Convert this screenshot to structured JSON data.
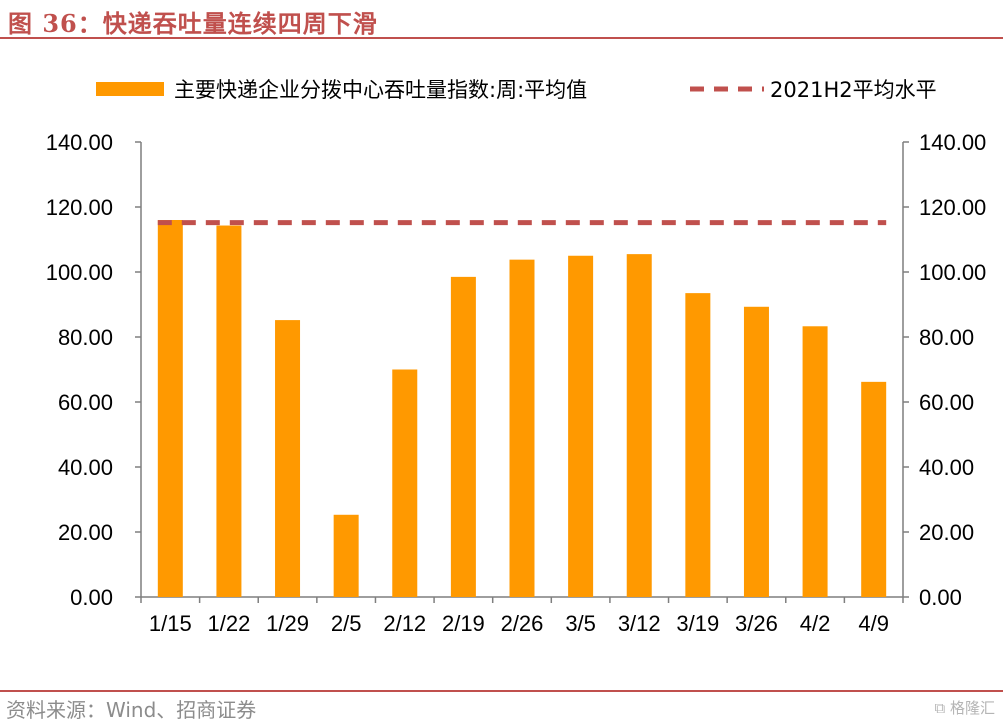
{
  "header": {
    "title": "图 36：快递吞吐量连续四周下滑"
  },
  "footer": {
    "source": "资料来源：Wind、招商证券",
    "watermark": "格隆汇"
  },
  "colors": {
    "accent": "#c0504d",
    "bar": "#ff9900",
    "reference_line": "#c0504d",
    "axis": "#7f7f7f"
  },
  "chart_data": {
    "type": "bar",
    "categories": [
      "1/15",
      "1/22",
      "1/29",
      "2/5",
      "2/12",
      "2/19",
      "2/26",
      "3/5",
      "3/12",
      "3/19",
      "3/26",
      "4/2",
      "4/9"
    ],
    "series": [
      {
        "name": "主要快递企业分拨中心吞吐量指数:周:平均值",
        "values": [
          116,
          114.3,
          85.2,
          25.3,
          70,
          98.5,
          103.8,
          105,
          105.5,
          93.5,
          89.3,
          83.3,
          66.2
        ]
      }
    ],
    "reference_line": {
      "name": "2021H2平均水平",
      "value": 115.2,
      "style": "dashed"
    },
    "yticks": [
      "0.00",
      "20.00",
      "40.00",
      "60.00",
      "80.00",
      "100.00",
      "120.00",
      "140.00"
    ],
    "ylim": [
      0,
      140
    ],
    "secondary_axis": true,
    "legend_position": "top",
    "grid": false
  }
}
